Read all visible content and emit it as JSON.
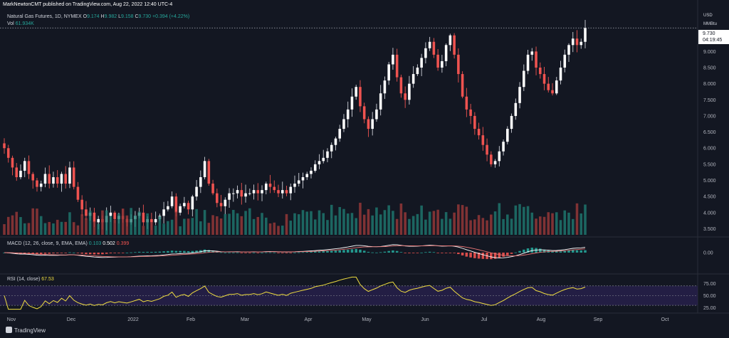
{
  "header": {
    "publisher_line": "MarkNewtonCMT published on TradingView.com, Aug 22, 2022 12:40 UTC-4"
  },
  "legend": {
    "symbol": "Natural Gas Futures, 1D, NYMEX",
    "o_label": "O",
    "o_value": "9.174",
    "h_label": "H",
    "h_value": "9.982",
    "l_label": "L",
    "l_value": "9.158",
    "c_label": "C",
    "c_value": "9.730",
    "change": "+0.394 (+4.22%)",
    "vol_label": "Vol",
    "vol_value": "61.934K"
  },
  "axis": {
    "currency": "USD",
    "unit": "MMBtu",
    "last_price": "9.730",
    "countdown": "04:19:45"
  },
  "macd_legend": {
    "label": "MACD (12, 26, close, 9, EMA, EMA)",
    "macd": "0.103",
    "signal": "0.502",
    "hist": "0.399"
  },
  "rsi_legend": {
    "label": "RSI (14, close)",
    "value": "67.53"
  },
  "footer": {
    "brand": "TradingView"
  },
  "colors": {
    "background": "#131722",
    "up": "#26a69a",
    "down": "#ef5350",
    "up_body": "#ffffff",
    "macd_line": "#ffffff",
    "signal_line": "#e57373",
    "rsi_line": "#f0de40",
    "rsi_band": "#2a2150"
  },
  "chart_data": [
    {
      "type": "candlestick",
      "title": "Natural Gas Futures, 1D, NYMEX",
      "ylabel": "USD / MMBtu",
      "ylim": [
        3.4,
        10.2
      ],
      "y_ticks": [
        3.5,
        4.0,
        4.5,
        5.0,
        5.5,
        6.0,
        6.5,
        7.0,
        7.5,
        8.0,
        8.5,
        9.0
      ],
      "x_ticks": [
        "Nov",
        "Dec",
        "2022",
        "Feb",
        "Mar",
        "Apr",
        "May",
        "Jun",
        "Jul",
        "Aug",
        "Sep",
        "Oct"
      ],
      "last_close": 9.73,
      "closes": [
        6.0,
        5.7,
        5.4,
        5.1,
        5.3,
        5.6,
        5.2,
        5.0,
        4.8,
        4.9,
        5.2,
        4.9,
        5.1,
        4.9,
        5.2,
        4.9,
        5.4,
        4.8,
        4.4,
        4.1,
        3.9,
        4.0,
        3.7,
        3.8,
        3.7,
        3.9,
        4.0,
        3.8,
        3.9,
        3.8,
        3.7,
        3.8,
        3.9,
        4.0,
        3.7,
        3.8,
        3.7,
        3.8,
        3.9,
        4.1,
        4.2,
        4.5,
        4.0,
        4.2,
        4.3,
        4.1,
        4.5,
        4.8,
        5.1,
        5.6,
        4.9,
        4.6,
        4.3,
        4.2,
        4.4,
        4.6,
        4.6,
        4.7,
        4.5,
        4.6,
        4.6,
        4.7,
        4.6,
        4.7,
        4.9,
        4.8,
        4.7,
        4.6,
        4.7,
        4.6,
        4.8,
        4.9,
        5.0,
        5.1,
        5.2,
        5.3,
        5.5,
        5.6,
        5.7,
        5.9,
        6.1,
        6.3,
        6.6,
        6.9,
        7.2,
        7.6,
        7.9,
        7.3,
        6.9,
        6.6,
        6.9,
        7.2,
        7.7,
        8.1,
        8.6,
        8.9,
        8.2,
        7.7,
        7.5,
        8.0,
        8.3,
        8.5,
        8.8,
        9.1,
        9.3,
        8.9,
        8.5,
        8.7,
        9.2,
        9.5,
        8.9,
        8.3,
        7.6,
        7.2,
        7.0,
        6.6,
        6.4,
        6.1,
        5.8,
        5.5,
        5.6,
        5.9,
        6.2,
        6.6,
        7.0,
        7.4,
        7.9,
        8.4,
        8.9,
        9.0,
        8.5,
        8.3,
        8.0,
        7.8,
        7.7,
        8.1,
        8.5,
        8.9,
        9.2,
        9.4,
        9.2,
        9.3,
        9.73
      ],
      "volume_note": "Vol 61.934K",
      "macd": {
        "macd": 0.103,
        "signal": 0.502,
        "histogram": 0.399,
        "y_ticks": [
          0.0
        ]
      },
      "rsi": {
        "value": 67.53,
        "y_ticks": [
          25.0,
          50.0,
          75.0
        ],
        "band": [
          30,
          70
        ]
      }
    }
  ]
}
